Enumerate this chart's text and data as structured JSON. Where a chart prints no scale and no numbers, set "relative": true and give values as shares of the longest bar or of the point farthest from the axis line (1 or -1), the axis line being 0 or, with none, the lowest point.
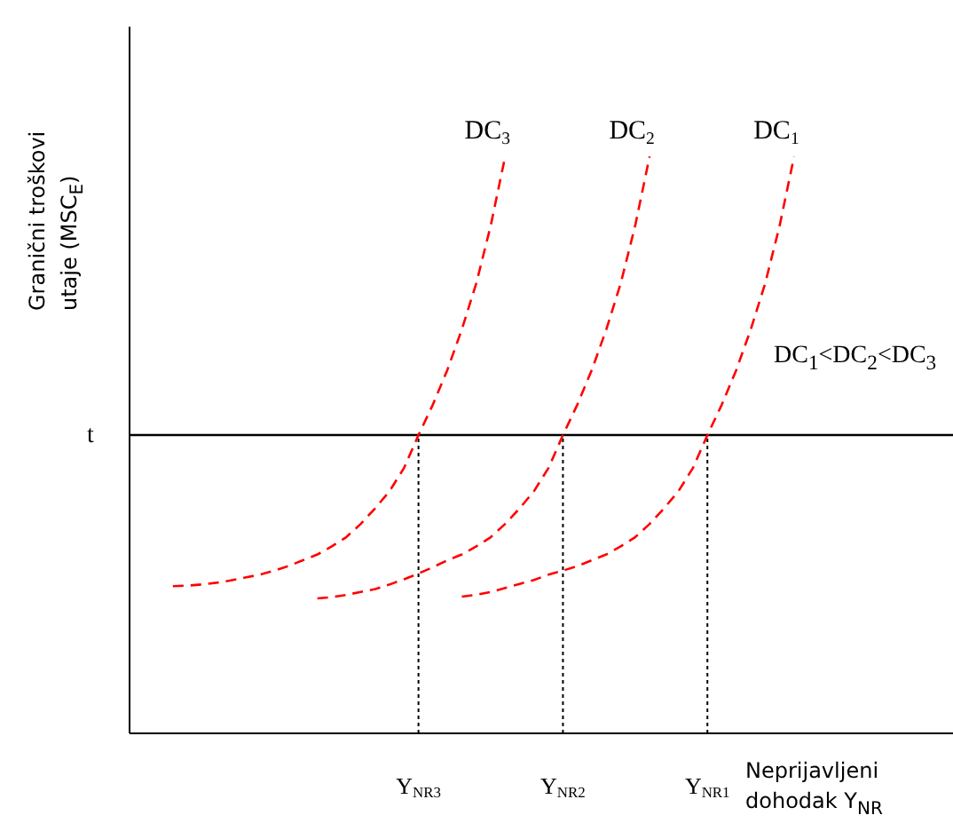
{
  "chart_data": {
    "type": "line",
    "relative": true,
    "xlabel": "Neprijavljeni dohodak Y$_{NR}$",
    "ylabel": "Granični troškovi utaje (MSC$_{E}$)",
    "categories": [
      null,
      null,
      null,
      null,
      null,
      null,
      null,
      null,
      null,
      null,
      null,
      null,
      null,
      null,
      null,
      null,
      null,
      null,
      null,
      null,
      "Y$_{NR3}$",
      null,
      null,
      null,
      null,
      null,
      null,
      null,
      null,
      null,
      "Y$_{NR2}$",
      null,
      null,
      null,
      null,
      null,
      null,
      null,
      null,
      null,
      "Y$_{NR1}$",
      null,
      null,
      null,
      null,
      null,
      null,
      null,
      null,
      null,
      null,
      null,
      null,
      null,
      null,
      null,
      null,
      null
    ],
    "series": [
      {
        "name": "DC$_{3}$",
        "color": "#ff0000",
        "values": [
          null,
          null,
          null,
          0.255,
          0.256,
          0.258,
          0.261,
          0.265,
          0.27,
          0.275,
          0.282,
          0.29,
          0.3,
          0.31,
          0.324,
          0.34,
          0.363,
          0.39,
          0.42,
          0.46,
          0.517,
          0.57,
          0.63,
          0.7,
          0.78,
          0.88,
          1.0,
          null,
          null,
          null,
          null,
          null,
          null,
          null,
          null,
          null,
          null,
          null,
          null,
          null,
          null,
          null,
          null,
          null,
          null,
          null,
          null,
          null,
          null,
          null,
          null,
          null,
          null,
          null,
          null,
          null,
          null,
          null
        ]
      },
      {
        "name": "DC$_{2}$",
        "color": "#ff0000",
        "values": [
          null,
          null,
          null,
          null,
          null,
          null,
          null,
          null,
          null,
          null,
          null,
          null,
          null,
          0.234,
          0.236,
          0.24,
          0.245,
          0.25,
          0.258,
          0.267,
          0.277,
          0.288,
          0.3,
          0.31,
          0.324,
          0.34,
          0.363,
          0.39,
          0.42,
          0.46,
          0.517,
          0.57,
          0.63,
          0.7,
          0.78,
          0.88,
          1.0,
          null,
          null,
          null,
          null,
          null,
          null,
          null,
          null,
          null,
          null,
          null,
          null,
          null,
          null,
          null,
          null,
          null,
          null,
          null,
          null,
          null
        ]
      },
      {
        "name": "DC$_{1}$",
        "color": "#ff0000",
        "values": [
          null,
          null,
          null,
          null,
          null,
          null,
          null,
          null,
          null,
          null,
          null,
          null,
          null,
          null,
          null,
          null,
          null,
          null,
          null,
          null,
          null,
          null,
          null,
          0.237,
          0.24,
          0.245,
          0.252,
          0.259,
          0.266,
          0.275,
          0.282,
          0.29,
          0.3,
          0.31,
          0.324,
          0.34,
          0.363,
          0.39,
          0.42,
          0.46,
          0.517,
          0.57,
          0.63,
          0.7,
          0.78,
          0.88,
          1.0,
          null,
          null,
          null,
          null,
          null,
          null,
          null,
          null,
          null,
          null,
          null
        ]
      }
    ],
    "ref_lines": [
      {
        "axis": "y",
        "value": 0.517,
        "label": "t",
        "color": "#000000",
        "line_style": "solid"
      },
      {
        "axis": "x",
        "value": "Y$_{NR3}$",
        "label": null,
        "color": "#000000",
        "line_style": "dotted"
      },
      {
        "axis": "x",
        "value": "Y$_{NR2}$",
        "label": null,
        "color": "#000000",
        "line_style": "dotted"
      },
      {
        "axis": "x",
        "value": "Y$_{NR1}$",
        "label": null,
        "color": "#000000",
        "line_style": "dotted"
      }
    ],
    "annotations": [
      "DC$_{1}$<DC$_{2}$<DC$_{3}$"
    ],
    "line_style": "dashed",
    "marker": "none",
    "legend": false,
    "grid": false,
    "tick_labels": "x"
  }
}
